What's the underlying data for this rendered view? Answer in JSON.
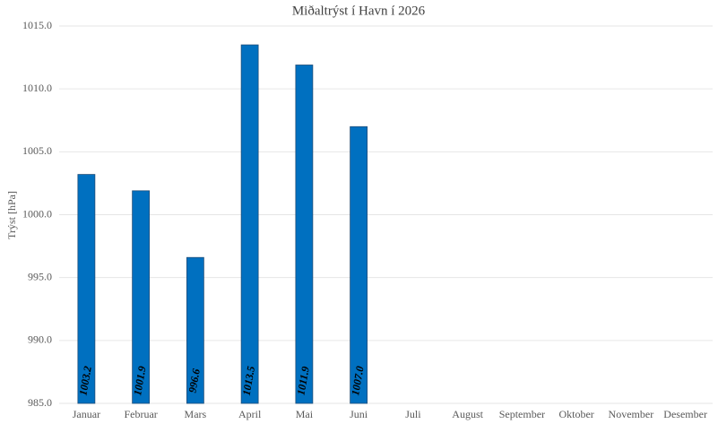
{
  "chart_data": {
    "type": "bar",
    "title": "Miðaltrýst í Havn í 2026",
    "y_label": "Trýst [hPa]",
    "categories": [
      "Januar",
      "Februar",
      "Mars",
      "April",
      "Mai",
      "Juni",
      "Juli",
      "August",
      "September",
      "Oktober",
      "November",
      "Desember"
    ],
    "values": [
      1003.2,
      1001.9,
      996.6,
      1013.5,
      1011.9,
      1007.0,
      null,
      null,
      null,
      null,
      null,
      null
    ],
    "value_labels": [
      "1003.2",
      "1001.9",
      "996.6",
      "1013.5",
      "1011.9",
      "1007.0",
      null,
      null,
      null,
      null,
      null,
      null
    ],
    "color": "#0070c0",
    "ylim": [
      985,
      1015
    ],
    "yticks": [
      {
        "value": 985,
        "label": "985.0"
      },
      {
        "value": 990,
        "label": "990.0"
      },
      {
        "value": 995,
        "label": "995.0"
      },
      {
        "value": 1000,
        "label": "1000.0"
      },
      {
        "value": 1005,
        "label": "1005.0"
      },
      {
        "value": 1010,
        "label": "1010.0"
      },
      {
        "value": 1015,
        "label": "1015.0"
      }
    ],
    "grid": true
  }
}
